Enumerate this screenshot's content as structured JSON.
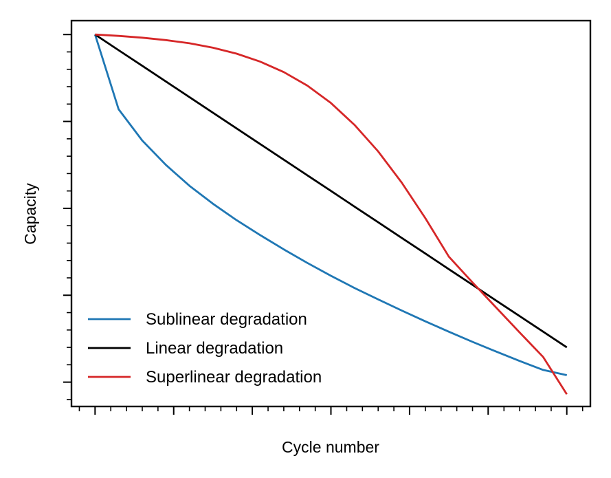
{
  "chart_data": {
    "type": "line",
    "title": "",
    "xlabel": "Cycle number",
    "ylabel": "Capacity",
    "xlim": [
      -0.05,
      1.05
    ],
    "ylim": [
      -0.07,
      1.04
    ],
    "x_tick_labels_shown": false,
    "y_tick_labels_shown": false,
    "x_major_ticks": [
      0,
      0.1667,
      0.3333,
      0.5,
      0.6667,
      0.8333,
      1.0
    ],
    "y_major_ticks": [
      0,
      0.25,
      0.5,
      0.75,
      1.0
    ],
    "grid": false,
    "legend_position": "lower-left",
    "x": [
      0,
      0.05,
      0.1,
      0.15,
      0.2,
      0.25,
      0.3,
      0.35,
      0.4,
      0.45,
      0.5,
      0.55,
      0.6,
      0.65,
      0.7,
      0.75,
      0.8,
      0.85,
      0.9,
      0.95,
      1.0
    ],
    "series": [
      {
        "name": "Sublinear degradation",
        "color": "#1f77b4",
        "values": [
          1.0,
          0.785,
          0.695,
          0.625,
          0.565,
          0.513,
          0.466,
          0.423,
          0.382,
          0.343,
          0.306,
          0.271,
          0.238,
          0.206,
          0.175,
          0.145,
          0.116,
          0.088,
          0.061,
          0.035,
          0.02
        ]
      },
      {
        "name": "Linear degradation",
        "color": "#000000",
        "values": [
          1.0,
          0.955,
          0.91,
          0.865,
          0.82,
          0.775,
          0.73,
          0.685,
          0.64,
          0.595,
          0.55,
          0.505,
          0.46,
          0.415,
          0.37,
          0.325,
          0.28,
          0.235,
          0.19,
          0.145,
          0.1
        ]
      },
      {
        "name": "Superlinear degradation",
        "color": "#d62728",
        "values": [
          1.0,
          0.996,
          0.991,
          0.984,
          0.975,
          0.962,
          0.945,
          0.922,
          0.892,
          0.853,
          0.803,
          0.74,
          0.664,
          0.574,
          0.472,
          0.361,
          0.287,
          0.215,
          0.143,
          0.072,
          -0.035
        ]
      }
    ]
  }
}
